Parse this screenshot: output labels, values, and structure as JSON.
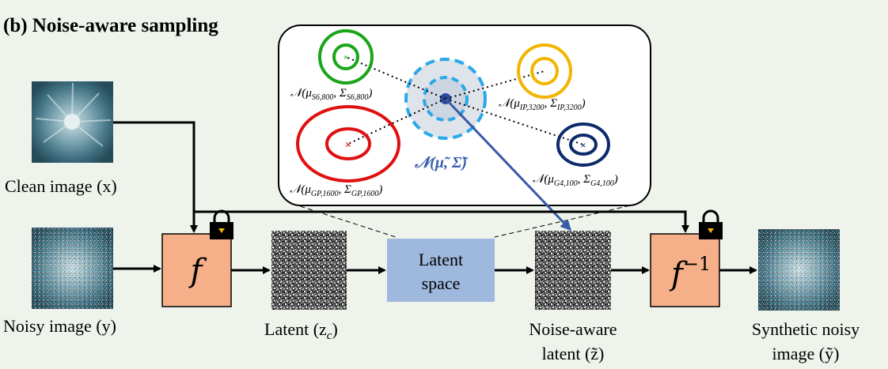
{
  "title": "(b) Noise-aware sampling",
  "labels": {
    "clean_image": "Clean image (x)",
    "noisy_image": "Noisy image (y)",
    "latent": "Latent (z",
    "latent_sub": "c",
    "latent_close": ")",
    "noise_aware_line1": "Noise-aware",
    "noise_aware_line2": "latent (z̃)",
    "synthetic_line1": "Synthetic noisy",
    "synthetic_line2": "image (ỹ)"
  },
  "blocks": {
    "forward": "f",
    "inverse": "f",
    "inverse_sup": "−1",
    "latent_space_line1": "Latent",
    "latent_space_line2": "space"
  },
  "distributions": [
    {
      "main": "𝒩(μ",
      "sub1": "S6,800",
      "mid": ", Σ",
      "sub2": "S6,800",
      "end": ")",
      "color": "#1aa51a"
    },
    {
      "main": "𝒩(μ",
      "sub1": "IP,3200",
      "mid": ", Σ",
      "sub2": "IP,3200",
      "end": ")",
      "color": "#f2b500"
    },
    {
      "main": "𝒩(μ",
      "sub1": "GP,1600",
      "mid": ", Σ",
      "sub2": "GP,1600",
      "end": ")",
      "color": "#e01010"
    },
    {
      "main": "𝒩(μ",
      "sub1": "G4,100",
      "mid": ", Σ",
      "sub2": "G4,100",
      "end": ")",
      "color": "#0c2a6b"
    }
  ],
  "center_distribution": {
    "text": "𝒩(μ̃, Σ̃)",
    "color": "#3a5fae"
  },
  "colors": {
    "block_fill": "#f5b08a",
    "latent_space_fill": "#9fb8de",
    "arrow_blue": "#3a5aa8",
    "center_dash": "#2aa8e8"
  }
}
